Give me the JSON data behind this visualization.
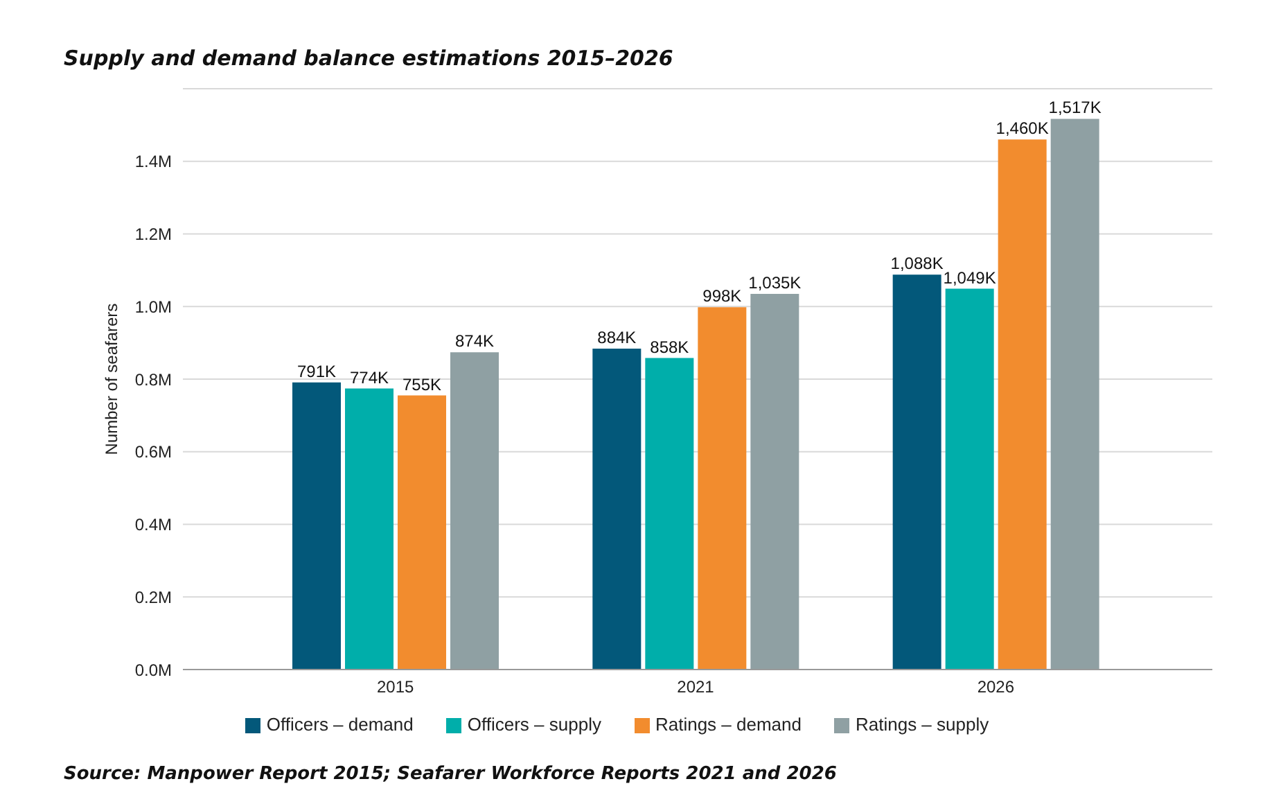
{
  "chart_data": {
    "type": "bar",
    "title": "Supply and demand balance estimations 2015–2026",
    "ylabel": "Number of seafarers",
    "categories": [
      "2015",
      "2021",
      "2026"
    ],
    "series": [
      {
        "name": "Officers – demand",
        "color": "#03587a",
        "values": [
          791000,
          884000,
          1088000
        ],
        "value_labels": [
          "791K",
          "884K",
          "1,088K"
        ]
      },
      {
        "name": "Officers – supply",
        "color": "#00aeaa",
        "values": [
          774000,
          858000,
          1049000
        ],
        "value_labels": [
          "774K",
          "858K",
          "1,049K"
        ]
      },
      {
        "name": "Ratings – demand",
        "color": "#f28c2e",
        "values": [
          755000,
          998000,
          1460000
        ],
        "value_labels": [
          "755K",
          "998K",
          "1,460K"
        ]
      },
      {
        "name": "Ratings – supply",
        "color": "#8fa0a3",
        "values": [
          874000,
          1035000,
          1517000
        ],
        "value_labels": [
          "874K",
          "1,035K",
          "1,517K"
        ]
      }
    ],
    "ylim": [
      0,
      1600000
    ],
    "yticks": [
      {
        "value": 0,
        "label": "0.0M"
      },
      {
        "value": 200000,
        "label": "0.2M"
      },
      {
        "value": 400000,
        "label": "0.4M"
      },
      {
        "value": 600000,
        "label": "0.6M"
      },
      {
        "value": 800000,
        "label": "0.8M"
      },
      {
        "value": 1000000,
        "label": "1.0M"
      },
      {
        "value": 1200000,
        "label": "1.2M"
      },
      {
        "value": 1400000,
        "label": "1.4M"
      }
    ],
    "grid": "y",
    "legend": "bottom",
    "annotations": [
      "Source: Manpower Report 2015; Seafarer Workforce Reports 2021 and 2026"
    ]
  }
}
